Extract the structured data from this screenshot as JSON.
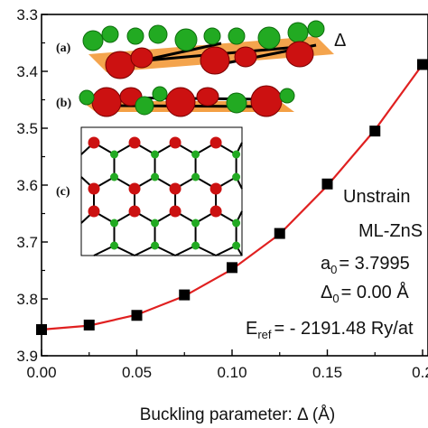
{
  "chart_data": {
    "type": "scatter",
    "xlabel": "Buckling parameter: Δ (Å)",
    "ylabel": "",
    "xlim": [
      0,
      0.2
    ],
    "ylim": [
      3.3,
      3.9
    ],
    "y_axis_inverted": true,
    "x_ticks": [
      "0.00",
      "0.05",
      "0.10",
      "0.15",
      "0.2"
    ],
    "x_tick_values": [
      0,
      0.05,
      0.1,
      0.15,
      0.2
    ],
    "y_ticks": [
      "3.3",
      "3.4",
      "3.5",
      "3.6",
      "3.7",
      "3.8",
      "3.9"
    ],
    "y_tick_values": [
      3.3,
      3.4,
      3.5,
      3.6,
      3.7,
      3.8,
      3.9
    ],
    "grid": false,
    "series": [
      {
        "kind": "points",
        "marker": "square",
        "color": "#000000",
        "x": [
          0.0,
          0.025,
          0.05,
          0.075,
          0.1,
          0.125,
          0.15,
          0.175,
          0.2
        ],
        "y": [
          3.854,
          3.846,
          3.829,
          3.793,
          3.745,
          3.685,
          3.598,
          3.505,
          3.388
        ]
      },
      {
        "kind": "fit-line",
        "color": "#e02020",
        "x": [
          0.0,
          0.025,
          0.05,
          0.075,
          0.1,
          0.125,
          0.15,
          0.175,
          0.2
        ],
        "y": [
          3.854,
          3.847,
          3.828,
          3.795,
          3.748,
          3.686,
          3.601,
          3.503,
          3.388
        ]
      }
    ],
    "annotations": {
      "line1": "Unstrain",
      "line2": "ML-ZnS",
      "a0_prefix": "a",
      "a0_sub": "0",
      "a0_value": "= 3.7995",
      "d0_prefix": "Δ",
      "d0_sub": "0",
      "d0_value": "= 0.00 Å",
      "eref_prefix": "E",
      "eref_sub": "ref",
      "eref_value": "= - 2191.48 Ry/at"
    },
    "insets": {
      "panel_a": "(a)",
      "panel_a_symbol": "Δ",
      "panel_b": "(b)",
      "panel_c": "(c)"
    },
    "colors": {
      "atom_red": "#cc1111",
      "atom_green": "#22aa22",
      "plane_orange": "#f39a3a"
    }
  }
}
